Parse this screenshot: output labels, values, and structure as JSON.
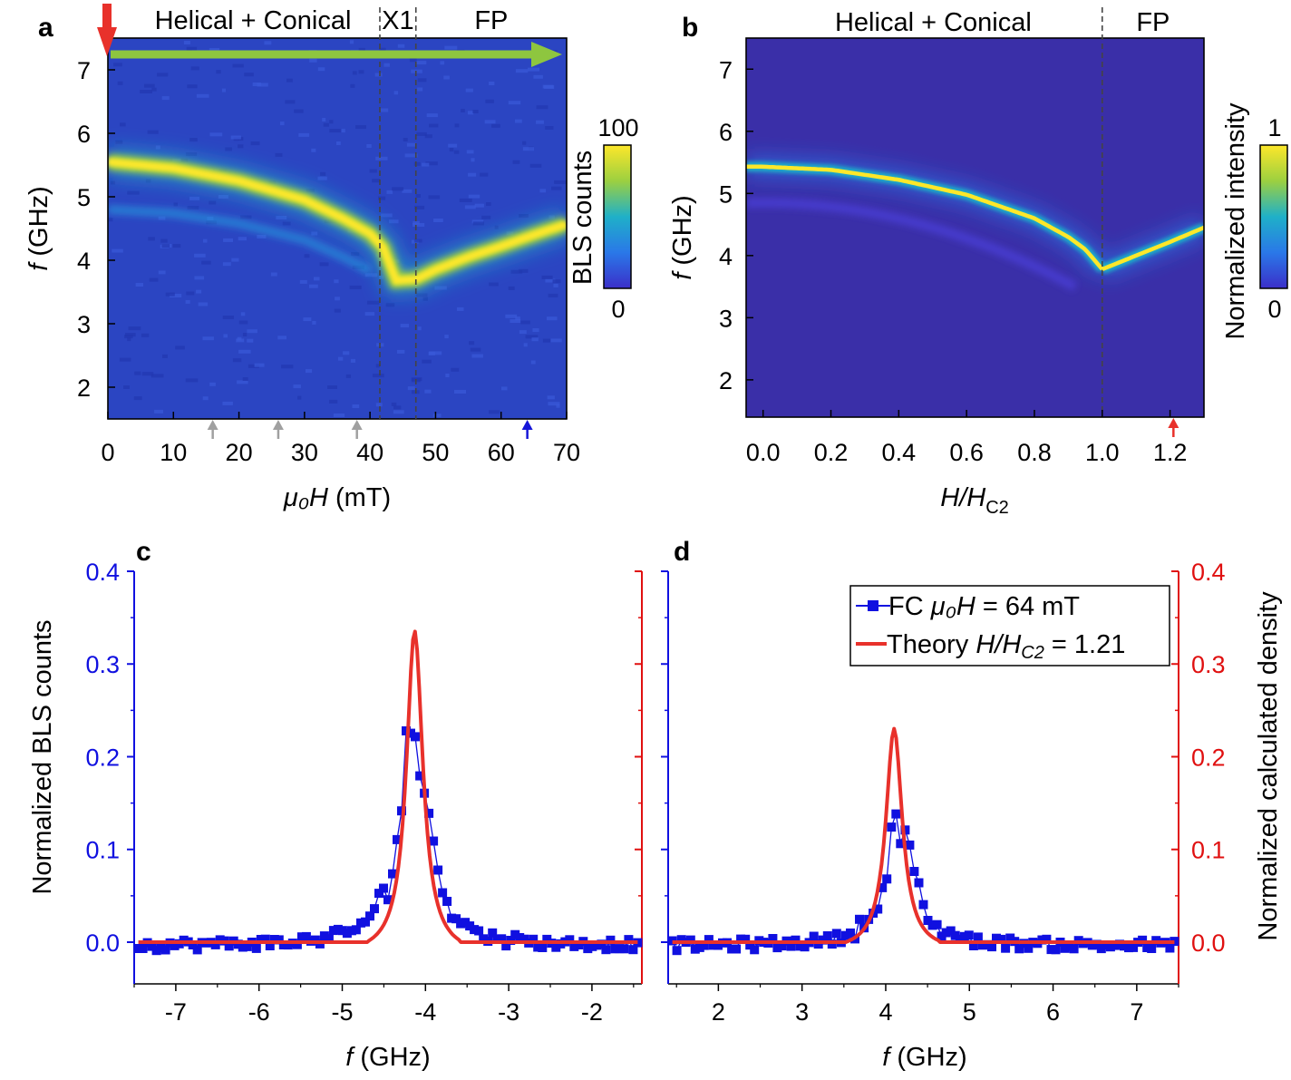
{
  "chart_data": [
    {
      "panel": "a",
      "type": "heatmap",
      "xlabel_italic": "μ₀H",
      "xlabel_rest": " (mT)",
      "ylabel_italic": "f",
      "ylabel_rest": " (GHz)",
      "xlim": [
        0,
        70
      ],
      "ylim": [
        1.5,
        7.5
      ],
      "xticks": [
        0,
        10,
        20,
        30,
        40,
        50,
        60,
        70
      ],
      "yticks": [
        2,
        3,
        4,
        5,
        6,
        7
      ],
      "regions": [
        "Helical + Conical",
        "X1",
        "FP"
      ],
      "boundaries": [
        41.5,
        47
      ],
      "colorbar": {
        "label": "BLS counts",
        "max": "100",
        "min": "0"
      },
      "field_marker_arrows": [
        16,
        26,
        38,
        64
      ],
      "mode_dispersion": {
        "field": [
          0,
          10,
          20,
          30,
          36,
          40,
          42,
          44,
          47,
          50,
          55,
          60,
          65,
          70
        ],
        "frequency": [
          5.55,
          5.45,
          5.25,
          4.95,
          4.65,
          4.42,
          4.2,
          3.68,
          3.7,
          3.85,
          4.05,
          4.22,
          4.4,
          4.57
        ]
      }
    },
    {
      "panel": "b",
      "type": "heatmap",
      "xlabel_italic": "H/H",
      "xlabel_sub": "C2",
      "ylabel_italic": "f",
      "ylabel_rest": " (GHz)",
      "xlim": [
        -0.05,
        1.3
      ],
      "ylim": [
        1.4,
        7.5
      ],
      "xticks": [
        "0.0",
        "0.2",
        "0.4",
        "0.6",
        "0.8",
        "1.0",
        "1.2"
      ],
      "yticks": [
        2,
        3,
        4,
        5,
        6,
        7
      ],
      "regions": [
        "Helical + Conical",
        "FP"
      ],
      "boundaries": [
        1.0
      ],
      "colorbar": {
        "label": "Normalized intensity",
        "max": "1",
        "min": "0"
      },
      "field_marker_arrows": [
        1.21
      ],
      "mode_dispersion": {
        "field": [
          0.0,
          0.2,
          0.4,
          0.6,
          0.8,
          0.9,
          0.95,
          1.0,
          1.1,
          1.2,
          1.3
        ],
        "frequency": [
          5.43,
          5.38,
          5.22,
          4.98,
          4.6,
          4.3,
          4.1,
          3.78,
          4.0,
          4.22,
          4.45
        ]
      }
    },
    {
      "panel": "c",
      "type": "line",
      "xlabel_italic": "f",
      "xlabel_rest": " (GHz)",
      "ylabel": "Normalized BLS counts",
      "xlim": [
        -7.5,
        -1.4
      ],
      "ylim": [
        -0.045,
        0.4
      ],
      "xticks": [
        -7,
        -6,
        -5,
        -4,
        -3,
        -2
      ],
      "yticks": [
        "0.0",
        "0.1",
        "0.2",
        "0.3",
        "0.4"
      ],
      "series": [
        {
          "name": "FC μ₀H = 64 mT",
          "peak_f": -4.15,
          "peak_value": 0.24,
          "width": 0.2
        },
        {
          "name": "Theory H/HC2 = 1.21",
          "peak_f": -4.13,
          "peak_value": 0.35,
          "width": 0.12
        }
      ]
    },
    {
      "panel": "d",
      "type": "line",
      "xlabel_italic": "f",
      "xlabel_rest": " (GHz)",
      "ylabel": "Normalized calculated density",
      "xlim": [
        1.4,
        7.5
      ],
      "ylim": [
        -0.045,
        0.4
      ],
      "xticks": [
        2,
        3,
        4,
        5,
        6,
        7
      ],
      "yticks": [
        "0.0",
        "0.1",
        "0.2",
        "0.3",
        "0.4"
      ],
      "legend": [
        {
          "prefix": "FC ",
          "italic": "μ₀H",
          "suffix": " = 64 mT"
        },
        {
          "prefix": "Theory ",
          "italic": "H/H",
          "sub": "C2",
          "suffix": " = 1.21"
        }
      ],
      "legend_position": "top-right",
      "series": [
        {
          "name": "FC μ₀H = 64 mT",
          "peak_f": 4.15,
          "peak_value": 0.13,
          "width": 0.2
        },
        {
          "name": "Theory H/HC2 = 1.21",
          "peak_f": 4.1,
          "peak_value": 0.24,
          "width": 0.12
        }
      ]
    }
  ]
}
